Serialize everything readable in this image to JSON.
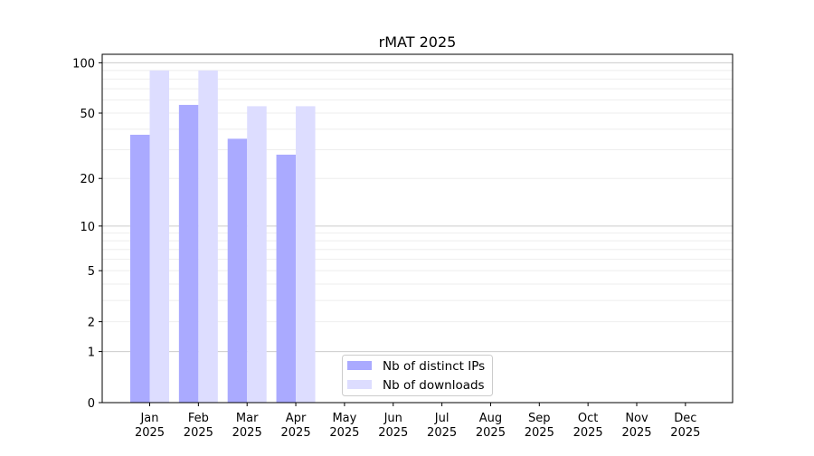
{
  "chart_data": {
    "type": "bar",
    "title": "rMAT 2025",
    "xlabel": "",
    "ylabel": "",
    "yscale": "log(1+y)",
    "ylim": [
      0,
      110
    ],
    "yticks": [
      0,
      1,
      2,
      5,
      10,
      20,
      50,
      100
    ],
    "grid": true,
    "legend_position": "bottom-center",
    "categories": [
      "Jan\n2025",
      "Feb\n2025",
      "Mar\n2025",
      "Apr\n2025",
      "May\n2025",
      "Jun\n2025",
      "Jul\n2025",
      "Aug\n2025",
      "Sep\n2025",
      "Oct\n2025",
      "Nov\n2025",
      "Dec\n2025"
    ],
    "series": [
      {
        "name": "Nb of distinct IPs",
        "color": "#aaaaff",
        "values": [
          37,
          56,
          35,
          28,
          0,
          0,
          0,
          0,
          0,
          0,
          0,
          0
        ]
      },
      {
        "name": "Nb of downloads",
        "color": "#ddddff",
        "values": [
          90,
          90,
          55,
          55,
          0,
          0,
          0,
          0,
          0,
          0,
          0,
          0
        ]
      }
    ]
  }
}
